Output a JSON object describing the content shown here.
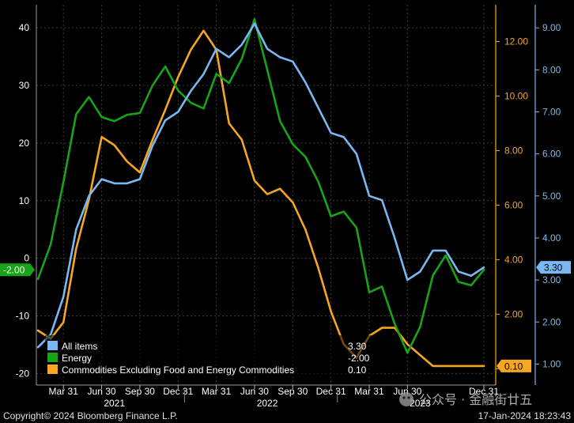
{
  "chart_data": {
    "type": "line",
    "x": [
      "2021-01",
      "2021-02",
      "2021-03",
      "2021-04",
      "2021-05",
      "2021-06",
      "2021-07",
      "2021-08",
      "2021-09",
      "2021-10",
      "2021-11",
      "2021-12",
      "2022-01",
      "2022-02",
      "2022-03",
      "2022-04",
      "2022-05",
      "2022-06",
      "2022-07",
      "2022-08",
      "2022-09",
      "2022-10",
      "2022-11",
      "2022-12",
      "2023-01",
      "2023-02",
      "2023-03",
      "2023-04",
      "2023-05",
      "2023-06",
      "2023-07",
      "2023-08",
      "2023-09",
      "2023-10",
      "2023-11",
      "2023-12"
    ],
    "x_tick_labels": [
      "Mar 31",
      "Jun 30",
      "Sep 30",
      "Dec 31",
      "Mar 31",
      "Jun 30",
      "Sep 30",
      "Dec 31",
      "Mar 31",
      "Jun 30",
      "Dec 31"
    ],
    "x_tick_dates": [
      "2021-03",
      "2021-06",
      "2021-09",
      "2021-12",
      "2022-03",
      "2022-06",
      "2022-09",
      "2022-12",
      "2023-03",
      "2023-06",
      "2023-12"
    ],
    "year_labels": [
      {
        "label": "2021",
        "at": "2021-07"
      },
      {
        "label": "2022",
        "at": "2022-07"
      },
      {
        "label": "2023",
        "at": "2023-07"
      }
    ],
    "y_left": {
      "ticks": [
        "40",
        "30",
        "20",
        "10",
        "0",
        "-10",
        "-20"
      ],
      "range": [
        -22,
        44
      ]
    },
    "y_mid": {
      "ticks": [
        "12.00",
        "10.00",
        "8.00",
        "6.00",
        "4.00",
        "2.00",
        "0.00"
      ],
      "range": [
        -0.6,
        13.35
      ]
    },
    "y_right": {
      "ticks": [
        "9.00",
        "8.00",
        "7.00",
        "6.00",
        "5.00",
        "4.00",
        "3.00",
        "2.00",
        "1.00"
      ],
      "range": [
        0.5,
        9.55
      ]
    },
    "series": [
      {
        "name": "All items",
        "axis": "right",
        "color": "#79b8f0",
        "last": "3.30",
        "values": [
          1.4,
          1.7,
          2.6,
          4.2,
          5.0,
          5.4,
          5.3,
          5.3,
          5.4,
          6.2,
          6.8,
          7.0,
          7.5,
          7.9,
          8.5,
          8.3,
          8.6,
          9.1,
          8.5,
          8.3,
          8.2,
          7.7,
          7.1,
          6.5,
          6.4,
          6.0,
          5.0,
          4.9,
          4.0,
          3.0,
          3.2,
          3.7,
          3.7,
          3.2,
          3.1,
          3.3
        ]
      },
      {
        "name": "Energy",
        "axis": "left",
        "color": "#19a319",
        "last": "-2.00",
        "values": [
          -3.6,
          2.4,
          13.2,
          25.0,
          28.0,
          24.5,
          23.8,
          24.9,
          25.2,
          30.0,
          33.3,
          29.1,
          27.0,
          26.0,
          32.0,
          30.4,
          34.6,
          41.5,
          32.7,
          23.8,
          19.8,
          17.6,
          13.3,
          7.3,
          8.1,
          5.3,
          -5.9,
          -4.9,
          -11.4,
          -16.4,
          -11.9,
          -3.0,
          0.5,
          -4.1,
          -4.7,
          -2.0
        ]
      },
      {
        "name": "Commodities Excluding Food and Energy Commodities",
        "axis": "mid",
        "color": "#f5a623",
        "last": "0.10",
        "values": [
          1.4,
          1.1,
          1.7,
          4.4,
          6.2,
          8.5,
          8.2,
          7.6,
          7.2,
          8.4,
          9.5,
          10.7,
          11.7,
          12.4,
          11.7,
          9.0,
          8.4,
          6.9,
          6.4,
          6.6,
          6.1,
          5.1,
          3.7,
          2.1,
          0.9,
          0.4,
          1.2,
          1.5,
          1.5,
          0.9,
          0.5,
          0.1,
          0.1,
          0.1,
          0.1,
          0.1
        ]
      }
    ],
    "legend_placement": "bottom-left",
    "grid": true,
    "footer_left": "Copyright© 2024 Bloomberg Finance L.P.",
    "footer_right": "17-Jan-2024 18:23:43",
    "watermark": "公众号 · 金融街廿五"
  },
  "colors": {
    "background": "#000000",
    "grid": "#3c3c3c",
    "axis_left_text": "#ffffff",
    "axis_mid": "#f5a623",
    "axis_right": "#79b8f0"
  }
}
